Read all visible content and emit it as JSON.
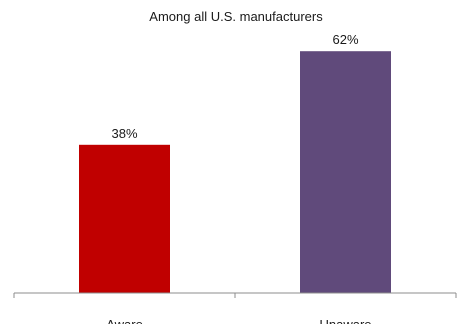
{
  "chart_data": {
    "type": "bar",
    "title": "Among all U.S. manufacturers",
    "categories": [
      "Aware",
      "Unaware"
    ],
    "values": [
      38,
      62
    ],
    "data_labels": [
      "38%",
      "62%"
    ],
    "colors": [
      "#c00000",
      "#604a7b"
    ],
    "ylim": [
      0,
      70
    ],
    "grid": false,
    "legend": "none",
    "xlabel": "",
    "ylabel": ""
  }
}
